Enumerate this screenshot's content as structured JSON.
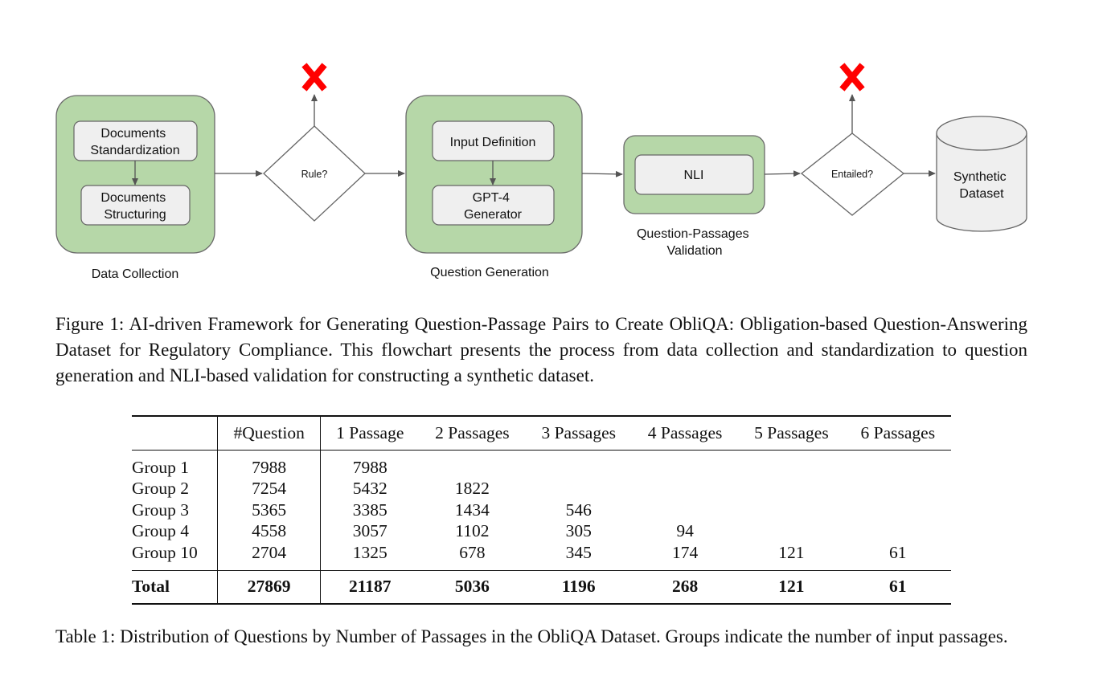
{
  "figure": {
    "data_collection": {
      "step1": [
        "Documents",
        "Standardization"
      ],
      "step2": [
        "Documents",
        "Structuring"
      ],
      "label": "Data Collection"
    },
    "rule_decision": "Rule?",
    "question_generation": {
      "step1": "Input Definition",
      "step2": [
        "GPT-4",
        "Generator"
      ],
      "label": "Question Generation"
    },
    "validation": {
      "step": "NLI",
      "label": [
        "Question-Passages",
        "Validation"
      ]
    },
    "entailed_decision": "Entailed?",
    "output": [
      "Synthetic",
      "Dataset"
    ],
    "colors": {
      "group_fill": "#b6d7a8",
      "box_fill": "#efefef",
      "reject": "#ff0000",
      "stroke": "#555555"
    },
    "icons": [
      "reject-x-icon",
      "reject-x-icon"
    ]
  },
  "figure_caption": "Figure 1: AI-driven Framework for Generating Question-Passage Pairs to Create ObliQA: Obligation-based Question-Answering Dataset for Regulatory Compliance. This flowchart presents the process from data collection and standardization to question generation and NLI-based validation for constructing a synthetic dataset.",
  "table": {
    "headers": [
      "",
      "#Question",
      "1 Passage",
      "2 Passages",
      "3 Passages",
      "4 Passages",
      "5 Passages",
      "6 Passages"
    ],
    "rows": [
      [
        "Group 1",
        "7988",
        "7988",
        "",
        "",
        "",
        "",
        ""
      ],
      [
        "Group 2",
        "7254",
        "5432",
        "1822",
        "",
        "",
        "",
        ""
      ],
      [
        "Group 3",
        "5365",
        "3385",
        "1434",
        "546",
        "",
        "",
        ""
      ],
      [
        "Group 4",
        "4558",
        "3057",
        "1102",
        "305",
        "94",
        "",
        ""
      ],
      [
        "Group 10",
        "2704",
        "1325",
        "678",
        "345",
        "174",
        "121",
        "61"
      ]
    ],
    "total": [
      "Total",
      "27869",
      "21187",
      "5036",
      "1196",
      "268",
      "121",
      "61"
    ]
  },
  "table_caption": "Table 1: Distribution of Questions by Number of Passages in the ObliQA Dataset. Groups indicate the number of input passages."
}
